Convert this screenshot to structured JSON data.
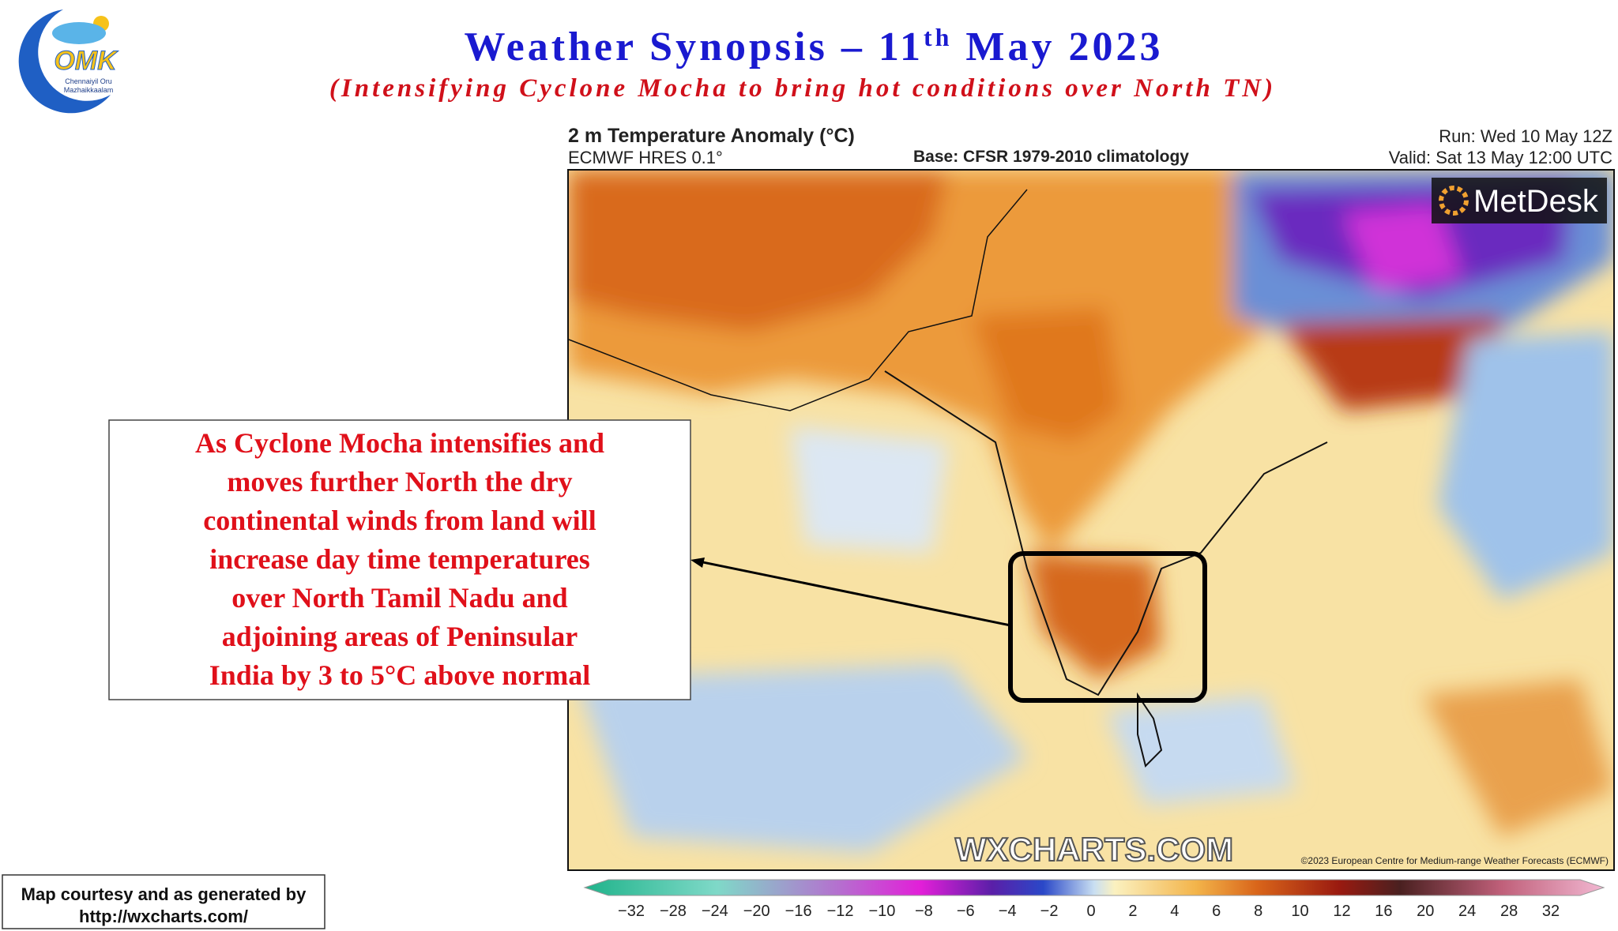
{
  "header": {
    "title_main": "Weather Synopsis – 11",
    "title_sup": "th",
    "title_end": " May 2023",
    "subtitle": "(Intensifying Cyclone Mocha to bring hot conditions over North TN)"
  },
  "logo": {
    "letters": "OMK",
    "line1": "Chennaiyil Oru",
    "line2": "Mazhaikkaalam"
  },
  "map": {
    "title": "2 m Temperature Anomaly (°C)",
    "model": "ECMWF HRES 0.1°",
    "base": "Base: CFSR 1979-2010 climatology",
    "run": "Run: Wed 10 May 12Z",
    "valid": "Valid: Sat 13 May 12:00 UTC",
    "brand": "MetDesk",
    "watermark": "WXCHARTS.COM",
    "copyright": "©2023 European Centre for Medium-range Weather Forecasts (ECMWF)"
  },
  "colorbar": {
    "ticks": [
      "−32",
      "−28",
      "−24",
      "−20",
      "−16",
      "−12",
      "−10",
      "−8",
      "−6",
      "−4",
      "−2",
      "0",
      "2",
      "4",
      "6",
      "8",
      "10",
      "12",
      "16",
      "20",
      "24",
      "28",
      "32"
    ]
  },
  "annotation": {
    "lines": [
      "As Cyclone Mocha intensifies and",
      "moves further North the dry",
      "continental winds from land will",
      "increase day time temperatures",
      "over North Tamil Nadu and",
      "adjoining areas of Peninsular",
      "India by 3 to 5°C above normal"
    ]
  },
  "credit": {
    "line1": "Map courtesy and as generated by",
    "line2": "http://wxcharts.com/"
  }
}
